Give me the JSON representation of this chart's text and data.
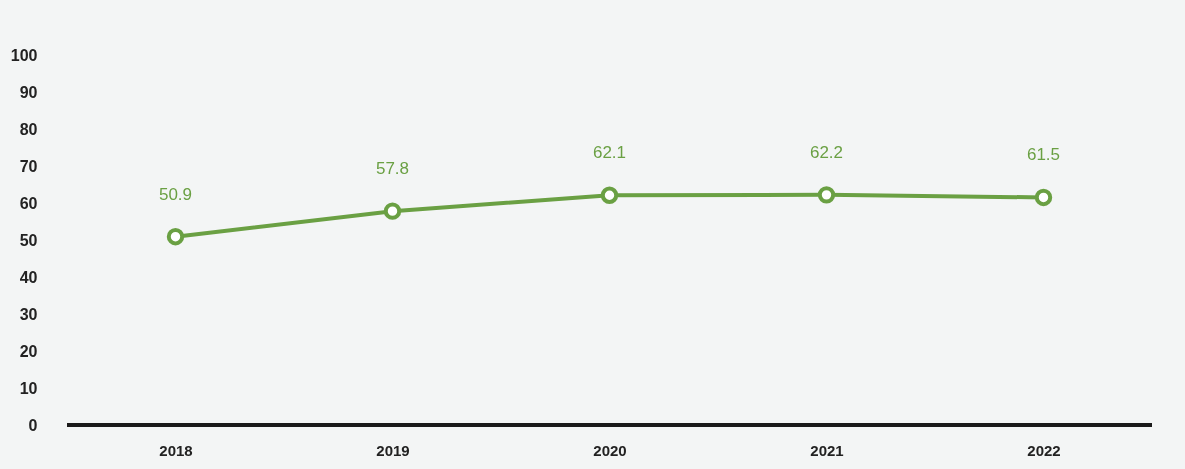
{
  "chart_data": {
    "type": "line",
    "categories": [
      "2018",
      "2019",
      "2020",
      "2021",
      "2022"
    ],
    "series": [
      {
        "color": "#6aa043",
        "values": [
          50.9,
          57.8,
          62.1,
          62.2,
          61.5
        ]
      }
    ],
    "ylim": [
      0,
      100
    ],
    "yticks": [
      0,
      10,
      20,
      30,
      40,
      50,
      60,
      70,
      80,
      90,
      100
    ],
    "data_labels": true,
    "marker": "circle",
    "grid": false,
    "legend": false
  }
}
